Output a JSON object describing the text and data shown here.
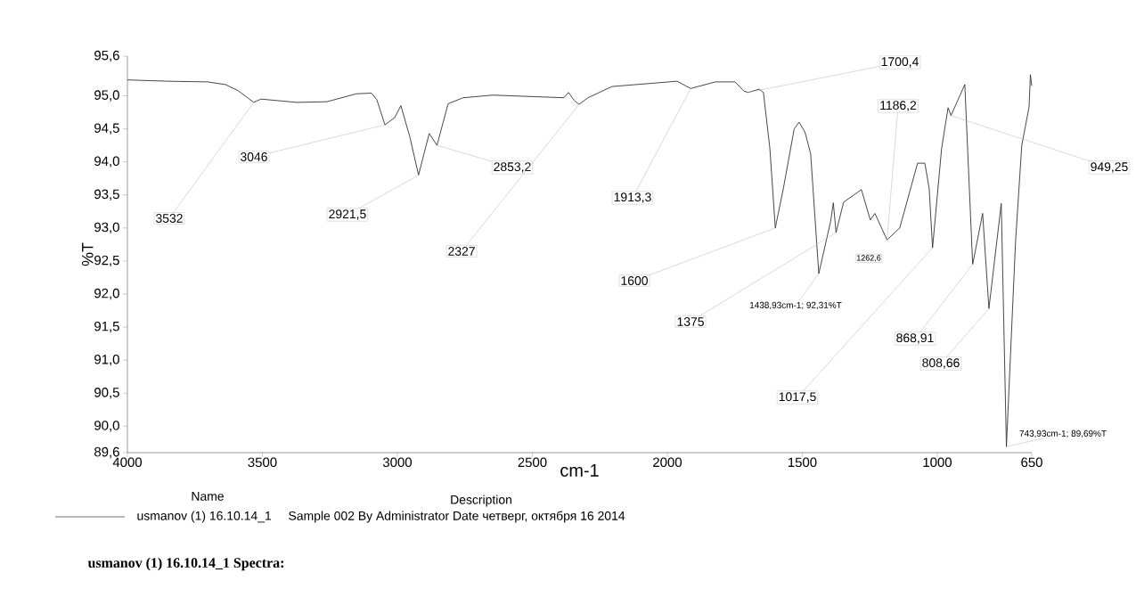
{
  "chart_data": {
    "type": "line",
    "xlabel": "cm-1",
    "ylabel": "%T",
    "xlim": [
      4000,
      650
    ],
    "xticks": [
      4000,
      3500,
      3000,
      2500,
      2000,
      1500,
      1000,
      650
    ],
    "ylim": [
      89.6,
      95.6
    ],
    "yticks": [
      {
        "value": 89.6,
        "label": "89,6"
      },
      {
        "value": 90.0,
        "label": "90,0"
      },
      {
        "value": 90.5,
        "label": "90,5"
      },
      {
        "value": 91.0,
        "label": "91,0"
      },
      {
        "value": 91.5,
        "label": "91,5"
      },
      {
        "value": 92.0,
        "label": "92,0"
      },
      {
        "value": 92.5,
        "label": "92,5"
      },
      {
        "value": 93.0,
        "label": "93,0"
      },
      {
        "value": 93.5,
        "label": "93,5"
      },
      {
        "value": 94.0,
        "label": "94,0"
      },
      {
        "value": 94.5,
        "label": "94,5"
      },
      {
        "value": 95.0,
        "label": "95,0"
      },
      {
        "value": 95.6,
        "label": "95,6"
      }
    ],
    "legend": "bottom",
    "legend_title": "Name",
    "line_style": "solid",
    "series": [
      {
        "name": "usmanov (1) 16.10.14_1",
        "color": "#333333",
        "x": [
          4000,
          3850,
          3703,
          3637,
          3591,
          3532,
          3505,
          3426,
          3373,
          3261,
          3152,
          3096,
          3076,
          3046,
          3010,
          2987,
          2954,
          2921.5,
          2882,
          2853.2,
          2812,
          2756,
          2647,
          2383,
          2366,
          2345,
          2327,
          2294,
          2205,
          1964,
          1913.3,
          1822,
          1749,
          1716,
          1700.4,
          1660,
          1644,
          1620,
          1600,
          1570,
          1530,
          1512,
          1490,
          1469,
          1438.93,
          1395,
          1385,
          1375,
          1347,
          1281,
          1248,
          1231,
          1186.2,
          1139,
          1073,
          1046,
          1030,
          1017.5,
          984,
          960,
          949.25,
          898,
          868.91,
          832,
          808.66,
          763,
          743.93,
          710,
          687,
          660,
          655,
          650
        ],
        "values": [
          95.24,
          95.22,
          95.21,
          95.17,
          95.08,
          94.9,
          94.95,
          94.92,
          94.9,
          94.91,
          95.03,
          95.04,
          94.94,
          94.56,
          94.67,
          94.85,
          94.38,
          93.8,
          94.43,
          94.25,
          94.88,
          94.97,
          95.01,
          94.97,
          95.05,
          94.93,
          94.87,
          94.97,
          95.14,
          95.22,
          95.11,
          95.21,
          95.21,
          95.07,
          95.05,
          95.1,
          95.05,
          94.2,
          93.0,
          93.6,
          94.5,
          94.6,
          94.45,
          94.12,
          92.31,
          93.1,
          93.38,
          92.93,
          93.39,
          93.58,
          93.12,
          93.22,
          92.82,
          93.0,
          93.98,
          93.98,
          93.6,
          92.7,
          94.2,
          94.82,
          94.7,
          95.17,
          92.45,
          93.22,
          91.78,
          93.37,
          89.69,
          92.8,
          94.25,
          94.83,
          95.32,
          95.15
        ]
      }
    ],
    "annotations": [
      {
        "text": "3532",
        "x": 3532,
        "y": 94.9
      },
      {
        "text": "3046",
        "x": 3046,
        "y": 94.56
      },
      {
        "text": "2921,5",
        "x": 2921.5,
        "y": 93.8
      },
      {
        "text": "2853,2",
        "x": 2853.2,
        "y": 94.25
      },
      {
        "text": "2327",
        "x": 2327,
        "y": 94.87
      },
      {
        "text": "1913,3",
        "x": 1913.3,
        "y": 95.11
      },
      {
        "text": "1700,4",
        "x": 1700.4,
        "y": 95.05
      },
      {
        "text": "1600",
        "x": 1600,
        "y": 93.0
      },
      {
        "text": "1375",
        "x": 1375,
        "y": 92.93
      },
      {
        "text": "1438,93cm-1; 92,31%T",
        "x": 1438.93,
        "y": 92.31
      },
      {
        "text": "1186,2",
        "x": 1186.2,
        "y": 92.82
      },
      "1262,6",
      {
        "text": "1017,5",
        "x": 1017.5,
        "y": 92.7
      },
      {
        "text": "949,25",
        "x": 949.25,
        "y": 94.7
      },
      {
        "text": "868,91",
        "x": 868.91,
        "y": 92.45
      },
      {
        "text": "808,66",
        "x": 808.66,
        "y": 91.78
      },
      {
        "text": "743,93cm-1; 89,69%T",
        "x": 743.93,
        "y": 89.69
      },
      "Description",
      "Sample 002 By Administrator Date четверг, октября 16 2014",
      "usmanov (1) 16.10.14_1 Spectra:"
    ]
  }
}
